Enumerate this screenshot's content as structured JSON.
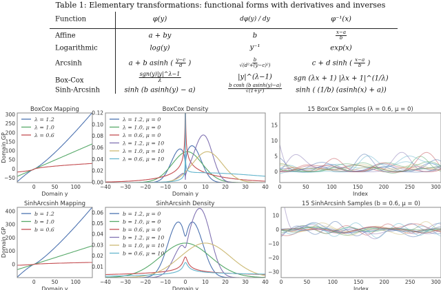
{
  "table": {
    "caption": "Table 1: Elementary transformations: functional forms with derivatives and inverses",
    "headers": [
      "Function",
      "φ(y)",
      "dφ(y) / dy",
      "φ⁻¹(x)"
    ],
    "header_parts": {
      "dnum": "dφ(y)",
      "dden": "dy"
    },
    "rows": [
      {
        "name": "Affine",
        "phi": "a + by",
        "deriv": "b",
        "inv_num": "x−a",
        "inv_den": "b"
      },
      {
        "name": "Logarithmic",
        "phi": "log(y)",
        "deriv": "y⁻¹",
        "inv": "exp(x)"
      },
      {
        "name": "Arcsinh",
        "phi_pre": "a + b asinh",
        "phi_num": "y−c",
        "phi_den": "d",
        "deriv_num": "b",
        "deriv_den": "√(d²+(y−c)²)",
        "inv_pre": "c + d sinh",
        "inv_num": "x−a",
        "inv_den": "b"
      },
      {
        "name": "Box-Cox",
        "phi_num": "sgn(y)|y|^λ−1",
        "phi_den": "λ",
        "deriv": "|y|^(λ−1)",
        "inv": "sgn (λx + 1) |λx + 1|^(1/λ)"
      },
      {
        "name": "Sinh-Arcsinh",
        "phi": "sinh (b asinh(y) − a)",
        "deriv_num": "b cosh (b asinh(y)−a)",
        "deriv_den": "√(1+y²)",
        "inv": "sinh ( (1/b) (asinh(x) + a))"
      }
    ]
  },
  "chart_data": [
    {
      "type": "line",
      "title": "BoxCox Mapping",
      "xlabel": "Domain y",
      "ylabel": "Domain GP",
      "transform": "boxcox",
      "xlim": [
        -40,
        140
      ],
      "ylim": [
        -75,
        310
      ],
      "xticks": [
        0,
        50,
        100
      ],
      "yticks": [
        -50,
        0,
        50,
        100,
        150,
        200,
        250,
        300
      ],
      "legend": "top-left",
      "series": [
        {
          "name": "λ = 1.2",
          "param": 1.2,
          "color": "#4C72B0"
        },
        {
          "name": "λ = 1.0",
          "param": 1.0,
          "color": "#55A868"
        },
        {
          "name": "λ = 0.6",
          "param": 0.6,
          "color": "#C44E52"
        }
      ]
    },
    {
      "type": "line",
      "title": "BoxCox Density",
      "xlabel": "Domain y",
      "ylabel": "",
      "transform": "boxcox",
      "sigma": 7.5,
      "xlim": [
        -40,
        40
      ],
      "ylim": [
        0,
        0.12
      ],
      "xticks": [
        -40,
        -30,
        -20,
        -10,
        0,
        10,
        20,
        30,
        40
      ],
      "yticks": [
        0.0,
        0.02,
        0.04,
        0.06,
        0.08,
        0.1,
        0.12
      ],
      "ytick_decimals": 2,
      "legend": "top-left",
      "series": [
        {
          "name": "λ = 1.2, μ = 0",
          "param": 1.2,
          "mu": 0,
          "color": "#4C72B0"
        },
        {
          "name": "λ = 1.0, μ = 0",
          "param": 1.0,
          "mu": 0,
          "color": "#55A868"
        },
        {
          "name": "λ = 0.6, μ = 0",
          "param": 0.6,
          "mu": 0,
          "color": "#C44E52"
        },
        {
          "name": "λ = 1.2, μ = 10",
          "param": 1.2,
          "mu": 10,
          "color": "#8172B2"
        },
        {
          "name": "λ = 1.0, μ = 10",
          "param": 1.0,
          "mu": 10,
          "color": "#CCB974"
        },
        {
          "name": "λ = 0.6, μ = 10",
          "param": 0.6,
          "mu": 10,
          "color": "#64B5CD"
        }
      ]
    },
    {
      "type": "line",
      "title": "15 BoxCox Samples (λ = 0.6, μ = 0)",
      "xlabel": "Index",
      "ylabel": "",
      "transform": "boxcox",
      "param": 0.6,
      "n_samples": 15,
      "xlim": [
        0,
        310
      ],
      "ylim": [
        -3.5,
        19
      ],
      "xticks": [
        0,
        50,
        100,
        150,
        200,
        250,
        300
      ],
      "yticks": [
        0,
        5,
        10,
        15
      ],
      "gp_scale": 2.2
    },
    {
      "type": "line",
      "title": "SinhArcsinh Mapping",
      "xlabel": "Domain y",
      "ylabel": "Domain GP",
      "transform": "sinharcsinh",
      "xlim": [
        -40,
        140
      ],
      "ylim": [
        -100,
        430
      ],
      "xticks": [
        0,
        50,
        100
      ],
      "yticks": [
        0,
        100,
        200,
        300,
        400
      ],
      "legend": "top-left",
      "series": [
        {
          "name": "b = 1.2",
          "param": 1.2,
          "color": "#4C72B0"
        },
        {
          "name": "b = 1.0",
          "param": 1.0,
          "color": "#55A868"
        },
        {
          "name": "b = 0.6",
          "param": 0.6,
          "color": "#C44E52"
        }
      ]
    },
    {
      "type": "line",
      "title": "SinhArcsinh Density",
      "xlabel": "Domain y",
      "ylabel": "",
      "transform": "sinharcsinh",
      "sigma": 12.5,
      "xlim": [
        -40,
        40
      ],
      "ylim": [
        0,
        0.065
      ],
      "xticks": [
        -40,
        -30,
        -20,
        -10,
        0,
        10,
        20,
        30,
        40
      ],
      "yticks": [
        0.01,
        0.02,
        0.03,
        0.04,
        0.05,
        0.06
      ],
      "ytick_decimals": 2,
      "legend": "top-left",
      "series": [
        {
          "name": "b = 1.2, μ = 0",
          "param": 1.2,
          "mu": 0,
          "color": "#4C72B0"
        },
        {
          "name": "b = 1.0, μ = 0",
          "param": 1.0,
          "mu": 0,
          "color": "#55A868"
        },
        {
          "name": "b = 0.6, μ = 0",
          "param": 0.6,
          "mu": 0,
          "color": "#C44E52"
        },
        {
          "name": "b = 1.2, μ = 10",
          "param": 1.2,
          "mu": 10,
          "color": "#8172B2"
        },
        {
          "name": "b = 1.0, μ = 10",
          "param": 1.0,
          "mu": 10,
          "color": "#CCB974"
        },
        {
          "name": "b = 0.6, μ = 10",
          "param": 0.6,
          "mu": 10,
          "color": "#64B5CD"
        }
      ]
    },
    {
      "type": "line",
      "title": "15 SinhArcsinh Samples (b = 0.6, μ = 0)",
      "xlabel": "Index",
      "ylabel": "",
      "transform": "sinharcsinh",
      "param": 0.6,
      "n_samples": 15,
      "xlim": [
        0,
        310
      ],
      "ylim": [
        -34,
        16
      ],
      "xticks": [
        0,
        50,
        100,
        150,
        200,
        250,
        300
      ],
      "yticks": [
        -30,
        -20,
        -10,
        0,
        10
      ],
      "gp_scale": 1.7
    }
  ],
  "sample_colors": [
    "#4C72B0",
    "#55A868",
    "#C44E52",
    "#8172B2",
    "#CCB974",
    "#64B5CD"
  ]
}
